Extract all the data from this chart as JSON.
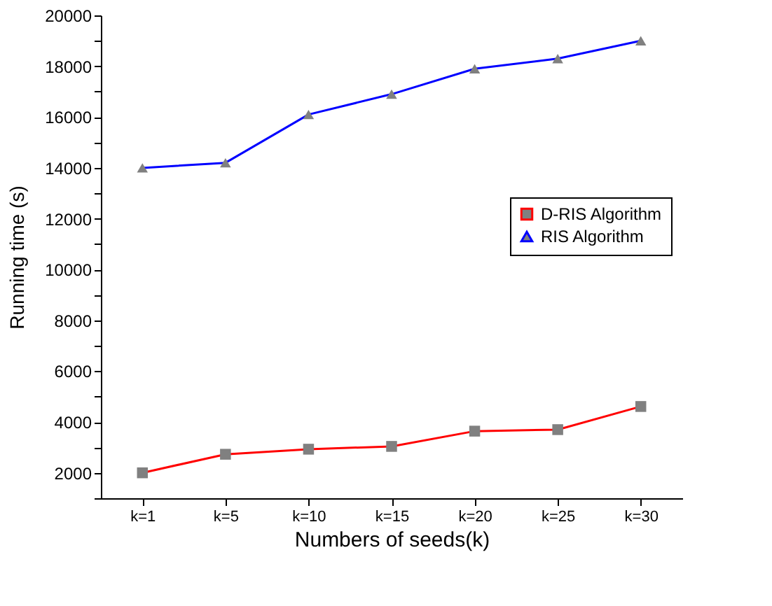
{
  "chart_data": {
    "type": "line",
    "xlabel": "Numbers of seeds(k)",
    "ylabel": "Running time   (s)",
    "categories": [
      "k=1",
      "k=5",
      "k=10",
      "k=15",
      "k=20",
      "k=25",
      "k=30"
    ],
    "series": [
      {
        "name": "D-RIS Algorithm",
        "color": "#ff0000",
        "marker": "square",
        "values": [
          2000,
          2730,
          2930,
          3040,
          3640,
          3700,
          4610
        ]
      },
      {
        "name": "RIS Algorithm",
        "color": "#0000ff",
        "marker": "triangle",
        "values": [
          14000,
          14200,
          16100,
          16900,
          17900,
          18300,
          19000
        ]
      }
    ],
    "ylim": [
      1000,
      20000
    ],
    "yticks": [
      {
        "value": 1000,
        "label": null
      },
      2000,
      {
        "value": 3000,
        "label": null
      },
      4000,
      {
        "value": 5000,
        "label": null
      },
      6000,
      {
        "value": 7000,
        "label": null
      },
      8000,
      {
        "value": 9000,
        "label": null
      },
      10000,
      {
        "value": 11000,
        "label": null
      },
      12000,
      {
        "value": 13000,
        "label": null
      },
      14000,
      {
        "value": 15000,
        "label": null
      },
      16000,
      {
        "value": 17000,
        "label": null
      },
      18000,
      {
        "value": 19000,
        "label": null
      },
      20000
    ],
    "grid": false,
    "legend": "right",
    "line_style": "solid"
  }
}
